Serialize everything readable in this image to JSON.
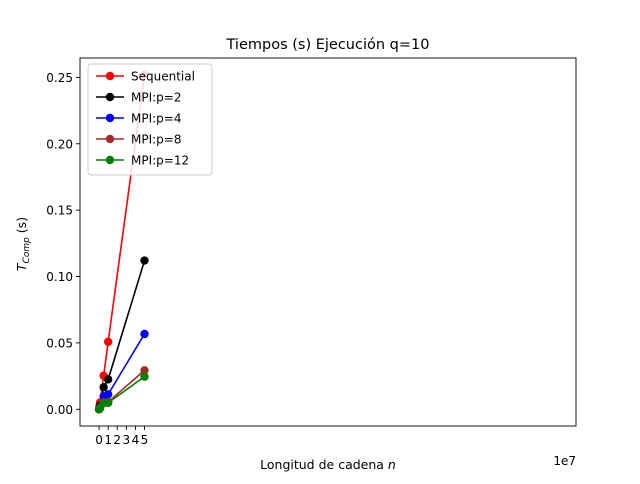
{
  "chart_data": {
    "type": "line",
    "title": "Tiempos (s) Ejecución q=10",
    "xlabel_main": "Longitud de cadena ",
    "xlabel_var": "n",
    "ylabel_main": "T",
    "ylabel_sub": "Comp",
    "ylabel_unit": " (s)",
    "x_offset_label": "1e7",
    "xlim": [
      -2.1,
      52.5
    ],
    "ylim": [
      -0.0126,
      0.2646
    ],
    "x_scale_note": "x values in units of 1e7",
    "x_ticks": [
      0,
      1,
      2,
      3,
      4,
      5
    ],
    "x_tick_labels": [
      "0",
      "1",
      "2",
      "3",
      "4",
      "5"
    ],
    "y_ticks": [
      0.0,
      0.05,
      0.1,
      0.15,
      0.2,
      0.25
    ],
    "y_tick_labels": [
      "0.00",
      "0.05",
      "0.10",
      "0.15",
      "0.20",
      "0.25"
    ],
    "legend_position": "upper-left",
    "grid": false,
    "series": [
      {
        "name": "Sequential",
        "color": "#ff0000",
        "x": [
          0.0,
          0.01,
          0.05,
          0.1,
          0.5,
          1.0,
          5.0
        ],
        "y": [
          0.0,
          0.0001,
          0.0025,
          0.005,
          0.0253,
          0.0508,
          0.252
        ]
      },
      {
        "name": "MPI:p=2",
        "color": "#000000",
        "x": [
          0.0,
          0.01,
          0.05,
          0.1,
          0.5,
          1.0,
          5.0
        ],
        "y": [
          0.0,
          0.0002,
          0.0015,
          0.0025,
          0.0166,
          0.0225,
          0.112
        ]
      },
      {
        "name": "MPI:p=4",
        "color": "#0000ff",
        "x": [
          0.0,
          0.01,
          0.05,
          0.1,
          0.5,
          1.0,
          5.0
        ],
        "y": [
          0.0,
          0.0002,
          0.001,
          0.0015,
          0.0098,
          0.0113,
          0.0567
        ]
      },
      {
        "name": "MPI:p=8",
        "color": "#a52a2a",
        "x": [
          0.0,
          0.01,
          0.05,
          0.1,
          0.5,
          1.0,
          5.0
        ],
        "y": [
          0.0,
          0.0001,
          0.0007,
          0.001,
          0.0052,
          0.0055,
          0.0293
        ]
      },
      {
        "name": "MPI:p=12",
        "color": "#008000",
        "x": [
          0.0,
          0.01,
          0.05,
          0.1,
          0.5,
          1.0,
          5.0
        ],
        "y": [
          0.0,
          0.0001,
          0.0005,
          0.0008,
          0.0046,
          0.0048,
          0.0246
        ]
      }
    ]
  }
}
